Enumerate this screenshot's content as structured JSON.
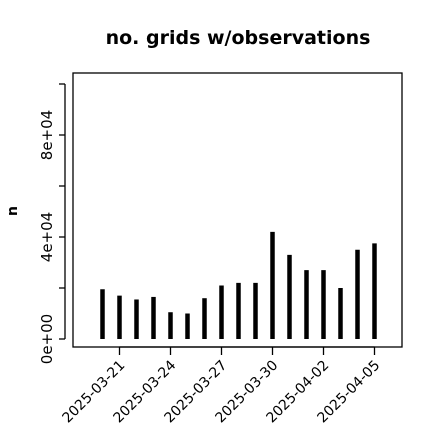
{
  "chart_data": {
    "type": "bar",
    "title": "no. grids w/observations",
    "xlabel": "",
    "ylabel": "n",
    "x": [
      "2025-03-20",
      "2025-03-21",
      "2025-03-22",
      "2025-03-23",
      "2025-03-24",
      "2025-03-25",
      "2025-03-26",
      "2025-03-27",
      "2025-03-28",
      "2025-03-29",
      "2025-03-30",
      "2025-03-31",
      "2025-04-01",
      "2025-04-02",
      "2025-04-03",
      "2025-04-04",
      "2025-04-05"
    ],
    "values": [
      19500,
      17000,
      15500,
      16500,
      10500,
      10000,
      16000,
      21000,
      22000,
      22000,
      42000,
      33000,
      27000,
      27000,
      20000,
      35000,
      37500
    ],
    "ylim": [
      0,
      100000
    ],
    "yticks": [
      0,
      40000,
      80000
    ],
    "ytick_labels": [
      "0e+00",
      "4e+04",
      "8e+04"
    ],
    "xticks": [
      "2025-03-21",
      "2025-03-24",
      "2025-03-27",
      "2025-03-30",
      "2025-04-02",
      "2025-04-05"
    ],
    "highlight_tick": "2025-03-27",
    "colors": {
      "bar": "#000000",
      "highlight_tick": "#228b22"
    }
  }
}
